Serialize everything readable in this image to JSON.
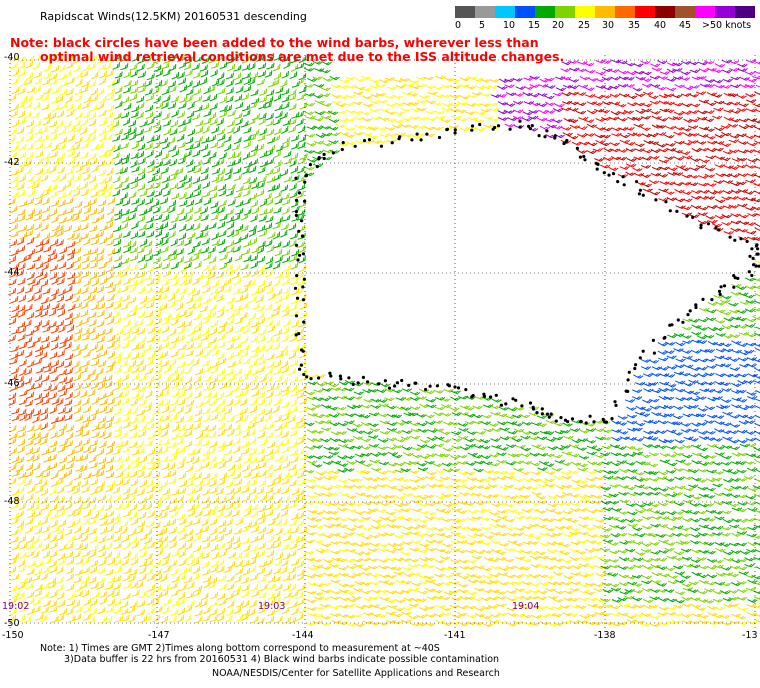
{
  "header": {
    "title": "Rapidscat Winds(12.5KM) 20160531 descending",
    "note_line1": "Note: black circles have been added to the wind barbs, wherever less than",
    "note_line2": "optimal wind retrieval conditions are met due to the ISS altitude changes."
  },
  "colorbar": {
    "labels": [
      "0",
      "5",
      "10",
      "15",
      "20",
      "25",
      "30",
      "35",
      "40",
      "45",
      ">50 knots"
    ],
    "colors": [
      "#555555",
      "#999999",
      "#00c8ff",
      "#0050ff",
      "#00aa00",
      "#7ed400",
      "#ffff00",
      "#ffbb00",
      "#ff6a00",
      "#ff0000",
      "#8b0000",
      "#a0522d",
      "#ff00ff",
      "#9400d3",
      "#4b0082"
    ]
  },
  "map": {
    "lat_labels": [
      "-40",
      "-42",
      "-44",
      "-46",
      "-48",
      "-50"
    ],
    "lon_labels": [
      "-150",
      "-147",
      "-144",
      "-141",
      "-138",
      "-13"
    ],
    "time_labels": [
      "19:02",
      "19:03",
      "19:04"
    ]
  },
  "footer": {
    "line1": "Note: 1) Times are GMT 2)Times along bottom correspond to measurement at ~40S",
    "line2": "3)Data buffer is 22 hrs from 20160531 4) Black wind barbs indicate possible contamination",
    "line3": "NOAA/NESDIS/Center for Satellite Applications and Research"
  }
}
